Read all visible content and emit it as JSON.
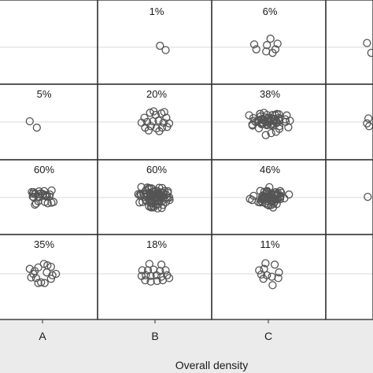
{
  "chart_data": {
    "type": "scatter",
    "layout": "faceted grid of point clouds, one panel per row and column",
    "xlabel": "Overall density",
    "columns": [
      "A",
      "B",
      "C"
    ],
    "rows": [
      {
        "cells": [
          {
            "label": "",
            "points": []
          },
          {
            "label": "1%",
            "points": [
              [
                0.7,
                0.2
              ],
              [
                1.5,
                -0.4
              ]
            ]
          },
          {
            "label": "6%",
            "points": [
              [
                -2.0,
                0.4
              ],
              [
                -1.7,
                -0.3
              ],
              [
                -0.2,
                0.3
              ],
              [
                0.3,
                1.2
              ],
              [
                1.3,
                0.5
              ],
              [
                1.0,
                -0.3
              ],
              [
                0.6,
                -0.8
              ],
              [
                -0.3,
                -0.6
              ]
            ]
          }
        ]
      },
      {
        "cells": [
          {
            "label": "5%",
            "points": [
              [
                -1.8,
                0.1
              ],
              [
                -0.8,
                -0.8
              ]
            ]
          },
          {
            "label": "20%",
            "points": [
              [
                -1.5,
                0.6
              ],
              [
                -0.7,
                1.3
              ],
              [
                0.1,
                1.0
              ],
              [
                0.9,
                1.2
              ],
              [
                1.6,
                0.6
              ],
              [
                -1.9,
                -0.1
              ],
              [
                -1.1,
                0.0
              ],
              [
                -0.3,
                0.1
              ],
              [
                0.5,
                0.2
              ],
              [
                1.2,
                -0.1
              ],
              [
                2.0,
                -0.2
              ],
              [
                -1.4,
                -0.8
              ],
              [
                -0.6,
                -0.6
              ],
              [
                0.2,
                -0.9
              ],
              [
                1.0,
                -0.8
              ],
              [
                1.7,
                -0.7
              ],
              [
                -0.9,
                -1.2
              ],
              [
                0.6,
                -1.3
              ],
              [
                -0.2,
                1.5
              ],
              [
                1.3,
                1.4
              ]
            ]
          },
          {
            "label": "38%",
            "points": []
          }
        ]
      },
      {
        "cells": [
          {
            "label": "60%",
            "points": []
          },
          {
            "label": "60%",
            "points": []
          },
          {
            "label": "46%",
            "points": []
          }
        ]
      },
      {
        "cells": [
          {
            "label": "35%",
            "points": [
              [
                -1.8,
                0.7
              ],
              [
                -1.3,
                0.0
              ],
              [
                -1.6,
                -0.5
              ],
              [
                -0.9,
                -0.6
              ],
              [
                -0.6,
                0.9
              ],
              [
                0.2,
                1.4
              ],
              [
                0.7,
                1.2
              ],
              [
                1.2,
                1.0
              ],
              [
                0.6,
                0.2
              ],
              [
                1.4,
                -0.2
              ],
              [
                1.9,
                0.0
              ],
              [
                1.2,
                -0.7
              ],
              [
                -0.2,
                -1.2
              ],
              [
                0.3,
                -1.3
              ],
              [
                -0.6,
                -1.3
              ],
              [
                -1.1,
                0.4
              ]
            ]
          },
          {
            "label": "18%",
            "points": [
              [
                -0.8,
                1.4
              ],
              [
                0.9,
                1.3
              ],
              [
                -1.8,
                0.5
              ],
              [
                -1.0,
                0.5
              ],
              [
                -0.2,
                0.6
              ],
              [
                0.7,
                0.4
              ],
              [
                1.5,
                0.5
              ],
              [
                -1.9,
                -0.3
              ],
              [
                -1.3,
                -0.2
              ],
              [
                -0.6,
                -0.3
              ],
              [
                0.2,
                -0.2
              ],
              [
                0.9,
                -0.4
              ],
              [
                1.7,
                -0.2
              ],
              [
                -1.4,
                -0.9
              ],
              [
                -0.6,
                -1.1
              ],
              [
                0.3,
                -1.0
              ],
              [
                1.1,
                -0.9
              ],
              [
                2.0,
                -0.6
              ]
            ]
          },
          {
            "label": "11%",
            "points": [
              [
                -0.4,
                1.5
              ],
              [
                0.9,
                1.3
              ],
              [
                -1.3,
                0.5
              ],
              [
                -0.6,
                0.7
              ],
              [
                -1.0,
                -0.1
              ],
              [
                -0.2,
                -0.2
              ],
              [
                -0.7,
                -0.7
              ],
              [
                0.5,
                -0.4
              ],
              [
                1.4,
                -0.6
              ],
              [
                0.6,
                -1.6
              ],
              [
                1.5,
                0.2
              ]
            ]
          }
        ]
      }
    ],
    "grid": "horizontal reference line through each panel's centre",
    "marker": "open circle",
    "colors": {
      "marker": "#555555",
      "panel_border": "#333333",
      "reference_line": "#d9d9d9",
      "strip_background": "#ebebeb"
    }
  }
}
